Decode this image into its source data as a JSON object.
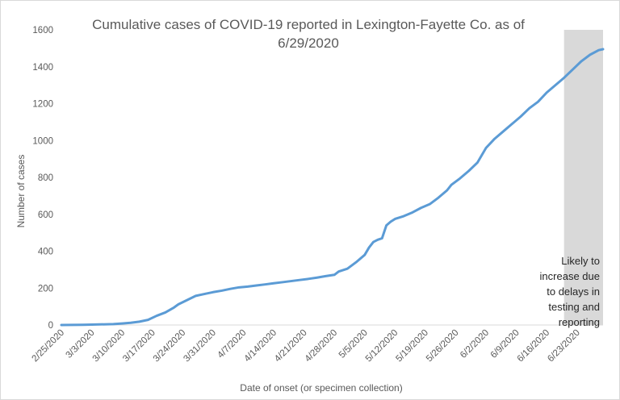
{
  "chart_data": {
    "type": "line",
    "title_lines": [
      "Cumulative cases of COVID-19 reported in Lexington-Fayette Co.  as of",
      "6/29/2020"
    ],
    "xlabel": "Date of onset (or specimen collection)",
    "ylabel": "Number of cases",
    "ylim": [
      0,
      1600
    ],
    "yticks": [
      0,
      200,
      400,
      600,
      800,
      1000,
      1200,
      1400,
      1600
    ],
    "x_start": "2/25/2020",
    "x_end": "6/29/2020",
    "x_tick_labels": [
      "2/25/2020",
      "3/3/2020",
      "3/10/2020",
      "3/17/2020",
      "3/24/2020",
      "3/31/2020",
      "4/7/2020",
      "4/14/2020",
      "4/21/2020",
      "4/28/2020",
      "5/5/2020",
      "5/12/2020",
      "5/19/2020",
      "5/26/2020",
      "6/2/2020",
      "6/9/2020",
      "6/16/2020",
      "6/23/2020"
    ],
    "grid": false,
    "line_color": "#5b9bd5",
    "shade_color": "#d9d9d9",
    "shaded_region": {
      "from": "6/20/2020",
      "to": "6/29/2020"
    },
    "annotation_lines": [
      "Likely to",
      "increase due",
      "to delays in",
      "testing and",
      "reporting"
    ],
    "series": [
      {
        "x": [
          "2/25/2020",
          "3/1/2020",
          "3/3/2020",
          "3/8/2020",
          "3/10/2020",
          "3/12/2020",
          "3/14/2020",
          "3/16/2020",
          "3/18/2020",
          "3/20/2020",
          "3/22/2020",
          "3/23/2020",
          "3/25/2020",
          "3/27/2020",
          "3/29/2020",
          "3/31/2020",
          "4/2/2020",
          "4/4/2020",
          "4/6/2020",
          "4/8/2020",
          "4/10/2020",
          "4/12/2020",
          "4/14/2020",
          "4/16/2020",
          "4/18/2020",
          "4/20/2020",
          "4/22/2020",
          "4/24/2020",
          "4/26/2020",
          "4/28/2020",
          "4/29/2020",
          "5/1/2020",
          "5/3/2020",
          "5/5/2020",
          "5/6/2020",
          "5/7/2020",
          "5/8/2020",
          "5/9/2020",
          "5/10/2020",
          "5/11/2020",
          "5/12/2020",
          "5/14/2020",
          "5/16/2020",
          "5/18/2020",
          "5/20/2020",
          "5/22/2020",
          "5/24/2020",
          "5/25/2020",
          "5/27/2020",
          "5/29/2020",
          "5/31/2020",
          "6/2/2020",
          "6/4/2020",
          "6/6/2020",
          "6/8/2020",
          "6/10/2020",
          "6/12/2020",
          "6/14/2020",
          "6/16/2020",
          "6/18/2020",
          "6/20/2020",
          "6/22/2020",
          "6/24/2020",
          "6/26/2020",
          "6/28/2020",
          "6/29/2020"
        ],
        "y": [
          0,
          1,
          2,
          5,
          8,
          12,
          18,
          28,
          50,
          68,
          95,
          112,
          135,
          158,
          168,
          178,
          186,
          196,
          204,
          208,
          214,
          220,
          226,
          232,
          238,
          244,
          250,
          257,
          265,
          272,
          290,
          305,
          340,
          380,
          420,
          450,
          462,
          470,
          540,
          560,
          575,
          590,
          610,
          635,
          655,
          690,
          730,
          760,
          795,
          835,
          880,
          960,
          1010,
          1050,
          1090,
          1130,
          1175,
          1210,
          1260,
          1300,
          1340,
          1385,
          1430,
          1465,
          1490,
          1495
        ]
      }
    ]
  }
}
